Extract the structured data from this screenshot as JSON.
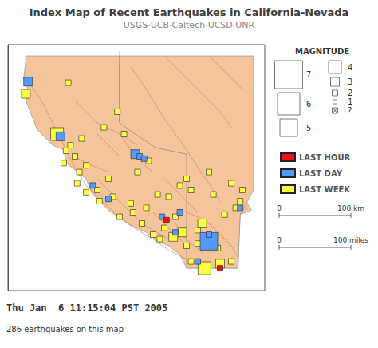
{
  "chart_data": {
    "type": "scatter",
    "title": "Index Map of Recent Earthquakes in California-Nevada",
    "subtitle": "USGS·UCB·Caltech·UCSD·UNR",
    "xlim": [
      -125.0,
      -113.5
    ],
    "ylim": [
      31.5,
      42.5
    ],
    "tick_labels": false,
    "grid": false,
    "legend": "right",
    "series": [
      {
        "type": "polygon",
        "color": "#f5c49a",
        "x": [
          -124.2,
          -124.2,
          -124.3,
          -124.1,
          -124.2,
          -124.0,
          -123.7,
          -123.0,
          -122.5,
          -122.4,
          -122.0,
          -121.5,
          -121.2,
          -120.8,
          -120.5,
          -119.5,
          -118.8,
          -118.3,
          -117.8,
          -117.3,
          -117.0,
          -114.7,
          -114.6,
          -114.1,
          -114.5,
          -115.0,
          -114.8,
          -117.0,
          -118.4,
          -119.3,
          -120.0,
          -120.0,
          -124.2
        ],
        "values": [
          42.0,
          41.8,
          41.0,
          40.5,
          40.0,
          39.5,
          38.7,
          38.0,
          37.8,
          37.2,
          36.9,
          36.5,
          35.8,
          35.4,
          35.1,
          34.4,
          34.1,
          33.7,
          33.5,
          33.1,
          32.5,
          32.5,
          34.9,
          35.1,
          35.8,
          36.2,
          37.0,
          37.6,
          37.9,
          38.5,
          39.0,
          42.0,
          42.0
        ]
      },
      {
        "type": "polygon",
        "color": "#f5c49a",
        "x": [
          -120.0,
          -114.0,
          -114.0,
          -114.6,
          -114.7,
          -117.0,
          -117.0,
          -118.4,
          -119.3,
          -120.0,
          -120.0
        ],
        "values": [
          42.0,
          42.0,
          36.0,
          34.9,
          32.5,
          32.5,
          37.6,
          37.9,
          38.5,
          39.0,
          42.0
        ]
      },
      {
        "type": "line",
        "color": "#888888",
        "x": [
          -120.0,
          -120.0
        ],
        "values": [
          39.0,
          42.2
        ]
      },
      {
        "type": "line",
        "color": "#cc8877",
        "x": [
          -124.2,
          -123.5,
          -123.0,
          -122.5,
          -122.0,
          -121.5,
          -120.8,
          -120.0,
          -119.2,
          -118.5,
          -117.8,
          -117.2,
          -116.5,
          null,
          -121.0,
          -120.5,
          -120.0,
          -119.5,
          -119.0,
          -118.5,
          -117.8,
          null,
          -122.0,
          -121.5,
          -121.0,
          -120.0,
          -119.2,
          null,
          -120.0,
          -119.5,
          -119.0,
          -118.5,
          null,
          -119.5,
          -119.0,
          -118.5,
          -118.0,
          -117.5,
          -117.0,
          -116.5,
          -116.0,
          -115.5,
          null,
          -118.0,
          -117.5,
          -117.0,
          -116.5,
          -116.0,
          -115.5,
          -115.0,
          null,
          -116.0,
          -115.5,
          -115.0,
          -114.5,
          null,
          -117.5,
          -117.2,
          -116.8,
          -116.3,
          null,
          -118.5,
          -118.0,
          -117.5,
          -117.0,
          null,
          -122.0,
          -121.5,
          -121.0,
          -120.5,
          null,
          -117.0,
          -116.5,
          -116.0,
          -115.5,
          -115.0,
          null,
          -118.0,
          -117.5,
          -117.0,
          -116.5,
          null,
          -121.0,
          -120.5,
          -120.0,
          null,
          -116.0,
          -115.5,
          -115.0,
          -114.7
        ],
        "values": [
          41.0,
          40.0,
          39.0,
          38.0,
          37.0,
          36.2,
          35.5,
          34.8,
          34.2,
          33.8,
          33.3,
          33.0,
          32.7,
          null,
          36.5,
          36.0,
          35.5,
          35.0,
          34.5,
          34.2,
          33.8,
          null,
          40.0,
          39.5,
          39.0,
          38.5,
          38.0,
          null,
          38.5,
          37.8,
          37.2,
          36.8,
          null,
          41.5,
          40.8,
          40.0,
          39.2,
          38.5,
          37.8,
          37.0,
          36.3,
          35.5,
          null,
          42.0,
          41.5,
          41.0,
          40.5,
          40.0,
          39.5,
          38.8,
          null,
          42.0,
          41.5,
          41.0,
          40.5,
          null,
          34.5,
          34.0,
          33.6,
          33.2,
          null,
          35.0,
          34.5,
          34.0,
          33.5,
          null,
          37.5,
          37.2,
          37.0,
          36.8,
          null,
          35.0,
          34.8,
          34.5,
          34.0,
          33.5,
          null,
          36.5,
          36.0,
          35.5,
          35.0,
          null,
          38.5,
          38.0,
          37.5,
          null,
          34.5,
          34.0,
          33.5,
          33.0
        ]
      },
      {
        "name": "LAST WEEK",
        "type": "scatter",
        "color": "#ffff44",
        "marker": "square",
        "x": [
          -122.3,
          -120.1,
          -124.2,
          -122.8,
          -122.4,
          -122.0,
          -121.5,
          -121.8,
          -120.5,
          -121.9,
          -121.5,
          -120.9,
          -120.3,
          -119.5,
          -117.8,
          -117.5,
          -116.5,
          -116.0,
          -115.6,
          -117.2,
          -118.0,
          -118.5,
          -119.0,
          -119.4,
          -121.0,
          -122.5,
          -122.2,
          -121.7,
          -120.7,
          -119.8,
          -117.0,
          -116.8,
          -115.8,
          -114.8,
          -115.3,
          -116.3,
          -117.6,
          -115.5,
          -116.2,
          -118.2,
          -120.0,
          -118.8,
          -114.6,
          -114.5,
          -115.0,
          -116.0,
          -117.3,
          -118.3,
          -119.2,
          -118.7,
          -116.5,
          -117.0,
          -116.8,
          -115.0
        ],
        "values": [
          40.8,
          39.5,
          40.3,
          38.5,
          37.75,
          37.5,
          37.1,
          36.8,
          36.5,
          36.3,
          35.9,
          35.5,
          35.7,
          35.4,
          35.7,
          34.8,
          34.2,
          33.8,
          33.4,
          34.1,
          34.3,
          34.0,
          34.5,
          35.0,
          36.0,
          37.2,
          38.0,
          38.3,
          38.8,
          38.5,
          36.5,
          36.0,
          35.8,
          35.2,
          34.9,
          34.5,
          33.9,
          32.7,
          32.5,
          33.8,
          34.8,
          35.2,
          35.5,
          36.0,
          36.3,
          36.8,
          36.2,
          35.8,
          36.8,
          37.3,
          33.6,
          33.5,
          32.8,
          32.8
        ],
        "magnitude": [
          2,
          2,
          3,
          4,
          2,
          2,
          2,
          2,
          2,
          2,
          2,
          2,
          2,
          2,
          2,
          2,
          2,
          2,
          2,
          3,
          2,
          2,
          2,
          2,
          2,
          2,
          2,
          2,
          2,
          2,
          2,
          2,
          2,
          2,
          2,
          3,
          3,
          3,
          4,
          2,
          2,
          2,
          2,
          2,
          2,
          2,
          2,
          2,
          2,
          2,
          2,
          2,
          2,
          2
        ]
      },
      {
        "name": "LAST DAY",
        "type": "scatter",
        "color": "#5599ff",
        "marker": "square",
        "x": [
          -124.1,
          -122.65,
          -119.3,
          -119.1,
          -118.9,
          -116.0,
          -120.5,
          -121.2,
          -117.3,
          -116.0,
          -114.6,
          -116.5,
          -117.5,
          -118.1
        ],
        "values": [
          40.85,
          38.4,
          37.6,
          37.5,
          37.4,
          33.7,
          35.6,
          36.2,
          35.0,
          34.0,
          35.2,
          32.8,
          34.1,
          34.8
        ],
        "magnitude": [
          3,
          3,
          3,
          2,
          2,
          5,
          2,
          2,
          2,
          2,
          2,
          2,
          2,
          2
        ]
      },
      {
        "name": "LAST HOUR",
        "type": "scatter",
        "color": "#ee1111",
        "marker": "square",
        "x": [
          -115.5,
          -117.9
        ],
        "values": [
          32.5,
          34.65
        ],
        "magnitude": [
          2,
          2
        ]
      }
    ],
    "magnitude_legend": {
      "title": "MAGNITUDE",
      "values": [
        7,
        6,
        5,
        4,
        3,
        2,
        1
      ],
      "unknown": "?"
    },
    "scale_bars": [
      [
        "0",
        "100 km"
      ],
      [
        "0",
        "100 miles"
      ]
    ],
    "annotations": [
      "Thu Jan  6 11:15:04 PST 2005",
      "286 earthquakes on this map"
    ]
  }
}
